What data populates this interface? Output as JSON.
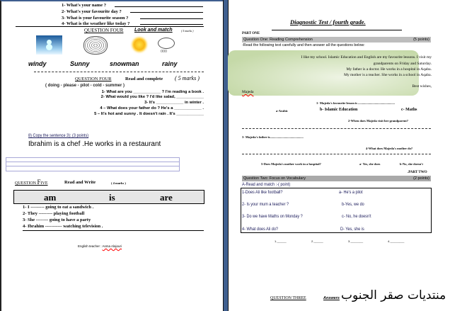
{
  "left": {
    "questions_top": [
      "1- What's your name ?",
      "2- What's your favourite day ?",
      "3- What is your favourite season ?",
      "4- What is the weather like today ?"
    ],
    "q4a": {
      "title": "QUESTION FOUR",
      "subtitle": "Look and match",
      "marks": "( 5 marks )",
      "icons": [
        "snowman-image-icon",
        "wind-cloud-icon",
        "sun-icon",
        "rain-cloud-icon"
      ],
      "words": [
        "windy",
        "Sunny",
        "snowman",
        "rainy"
      ]
    },
    "q4b": {
      "title": "QUESTION  FOUR",
      "subtitle": "Read and complete",
      "marks": "( 5 marks )",
      "word_bank": "( doing   -   please  -   pilot   -   cold  -   summer    )",
      "items": [
        "1- What are you ____________ ? I'm reading a book .",
        "2- What would you like ? I'd like salad, ____________",
        "3- It's ____________  in winter .",
        "4 – What does your father do ?  He's a ____________  .",
        "5 – It's hot and sunny . It doesn't rain . It's ____________"
      ]
    },
    "copy": {
      "instruction": "8) Copy the sentence   3): (3  points)",
      "sentence": "Ibrahim is a chef .He works in a restaurant"
    },
    "q5": {
      "title_a": "QUESTION",
      "title_b": "Five",
      "subtitle": "Read and Write",
      "marks": "( 4  marks )",
      "options": [
        "am",
        "is",
        "are"
      ],
      "items": [
        "1-   I  --------- going to eat a sandwich .",
        "2-   They --------- playing football",
        "3-   She -------- going to have a party",
        "4-   Ibrahim ----------- watching television ."
      ]
    },
    "footer": {
      "label": "English teacher  :",
      "name": "Asma Alajouri"
    }
  },
  "right": {
    "title": "Diagnostic Test /  fourth grade.",
    "part_one": "PART ONE",
    "q1": {
      "label": "Question One: Reading Comprehension",
      "points": "(5 points)",
      "instruction": "-Read the following text carefully and then answer  all the questions  below:",
      "passage": [
        "I like my school. Islamic Education and English are my favourite lessons. I visit my",
        "grandparents on Friday and Saturday.",
        "My father is a doctor. He works in a hospital in Aqaba.",
        "My mother is a teacher.  She works in a school in Aqaba.",
        "Best wishes,"
      ],
      "signature": "Majeda",
      "questions": [
        "1- Majeda's favourite lesson is ..............................................",
        "2-When does Majeda visit her grandparent?",
        "3- Majeda's father is..........................................",
        "4-What does Majeda's mother do?",
        "5-Does Majeda's mother  work in a hospital?"
      ],
      "options1": [
        "a-Arabic",
        "b- Islamic Education",
        "c- Maths"
      ],
      "options5": [
        "a- Yes, she does",
        "b-No, she doesn't"
      ]
    },
    "part_two": ".PART TWO",
    "q2": {
      "label": "Question Two: Focus on Vocabulary",
      "points": "(2 points)",
      "instruction": "A-Read and match  :-( point)",
      "left": [
        "1-Does Ali like football?",
        "2-  Is  your mum a teacher ?",
        "3- Do we have Maths on  Monday ?",
        "4- What does Ali do?"
      ],
      "right": [
        "a- He's a pilot",
        "b-Yes, we do",
        "c- No, he doesn't",
        "D- Yes, she is"
      ],
      "answers": [
        "1.______",
        "2.______",
        "3.________",
        "4._________"
      ]
    },
    "q3": {
      "title": "QUESTION THREE",
      "answer": "Answers"
    },
    "watermark": "منتديات صقر الجنوب"
  },
  "colors": {
    "gutter": "#3f5f8f",
    "passage_bg": "#c5d9a8",
    "grey_bar": "#bdbdbd"
  }
}
